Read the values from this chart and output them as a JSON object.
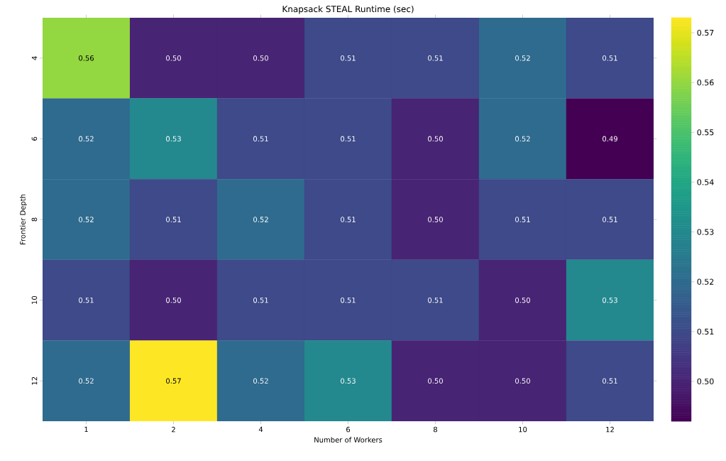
{
  "chart_data": {
    "type": "heatmap",
    "title": "Knapsack STEAL Runtime (sec)",
    "xlabel": "Number of Workers",
    "ylabel": "Frontier Depth",
    "categories": [
      "1",
      "2",
      "4",
      "6",
      "8",
      "10",
      "12"
    ],
    "y_categories": [
      "4",
      "6",
      "8",
      "10",
      "12"
    ],
    "cells": [
      [
        0.56,
        0.5,
        0.5,
        0.51,
        0.51,
        0.52,
        0.51
      ],
      [
        0.52,
        0.53,
        0.51,
        0.51,
        0.5,
        0.52,
        0.492
      ],
      [
        0.52,
        0.51,
        0.52,
        0.51,
        0.5,
        0.51,
        0.51
      ],
      [
        0.51,
        0.5,
        0.51,
        0.51,
        0.51,
        0.5,
        0.53
      ],
      [
        0.52,
        0.573,
        0.52,
        0.53,
        0.5,
        0.5,
        0.51
      ]
    ],
    "cell_labels": [
      [
        "0.56",
        "0.50",
        "0.50",
        "0.51",
        "0.51",
        "0.52",
        "0.51"
      ],
      [
        "0.52",
        "0.53",
        "0.51",
        "0.51",
        "0.50",
        "0.52",
        "0.49"
      ],
      [
        "0.52",
        "0.51",
        "0.52",
        "0.51",
        "0.50",
        "0.51",
        "0.51"
      ],
      [
        "0.51",
        "0.50",
        "0.51",
        "0.51",
        "0.51",
        "0.50",
        "0.53"
      ],
      [
        "0.52",
        "0.57",
        "0.52",
        "0.53",
        "0.50",
        "0.50",
        "0.51"
      ]
    ],
    "clim": [
      0.492,
      0.573
    ],
    "cticks": [
      {
        "value": 0.5,
        "label": "0.50"
      },
      {
        "value": 0.51,
        "label": "0.51"
      },
      {
        "value": 0.52,
        "label": "0.52"
      },
      {
        "value": 0.53,
        "label": "0.53"
      },
      {
        "value": 0.54,
        "label": "0.54"
      },
      {
        "value": 0.55,
        "label": "0.55"
      },
      {
        "value": 0.56,
        "label": "0.56"
      },
      {
        "value": 0.57,
        "label": "0.57"
      }
    ]
  }
}
